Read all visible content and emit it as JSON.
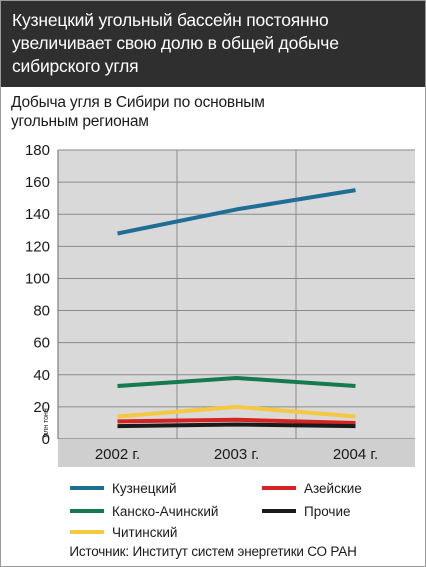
{
  "header": {
    "title_line1": "Кузнецкий угольный бассейн постоянно",
    "title_line2": "увеличивает свою долю в общей добыче",
    "title_line3": "сибирского угля"
  },
  "source": "Источник: Институт систем энергетики СО РАН",
  "chart_data": {
    "type": "line",
    "title": "Добыча угля в Сибири по основным угольным регионам",
    "title_line1": "Добыча угля в Сибири по основным",
    "title_line2": "угольным регионам",
    "ylabel": "млн тонн",
    "categories": [
      "2002 г.",
      "2003 г.",
      "2004 г."
    ],
    "ylim": [
      0,
      180
    ],
    "yticks": [
      "0",
      "20",
      "40",
      "60",
      "80",
      "100",
      "120",
      "140",
      "160",
      "180"
    ],
    "grid": true,
    "legend_position": "bottom",
    "series": [
      {
        "name": "Кузнецкий",
        "values": [
          128,
          143,
          155
        ],
        "color": "#1f6e96"
      },
      {
        "name": "Канско-Ачинский",
        "values": [
          33,
          38,
          33
        ],
        "color": "#157a4e"
      },
      {
        "name": "Читинский",
        "values": [
          14,
          20,
          14
        ],
        "color": "#f5c842"
      },
      {
        "name": "Азейские",
        "values": [
          11,
          12,
          10
        ],
        "color": "#d42323"
      },
      {
        "name": "Прочие",
        "values": [
          8,
          9,
          8
        ],
        "color": "#1a1a1a"
      }
    ]
  }
}
